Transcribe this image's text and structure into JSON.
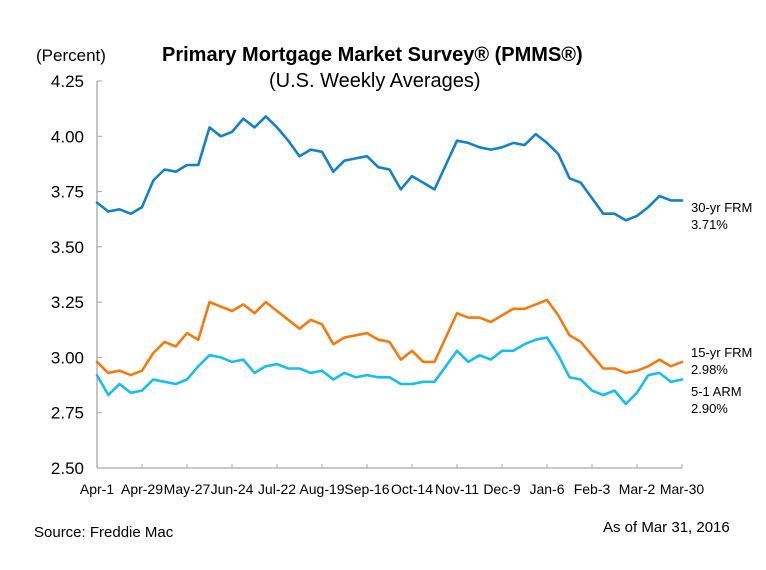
{
  "chart_data": {
    "type": "line",
    "title": "Primary Mortgage Market Survey® (PMMS®)",
    "subtitle": "(U.S. Weekly Averages)",
    "ylabel": "(Percent)",
    "xlabel": "",
    "ylim": [
      2.5,
      4.25
    ],
    "yticks": [
      "4.25",
      "4.00",
      "3.75",
      "3.50",
      "3.25",
      "3.00",
      "2.75",
      "2.50"
    ],
    "ytick_values": [
      4.25,
      4.0,
      3.75,
      3.5,
      3.25,
      3.0,
      2.75,
      2.5
    ],
    "xtick_labels": [
      "Apr-1",
      "Apr-29",
      "May-27",
      "Jun-24",
      "Jul-22",
      "Aug-19",
      "Sep-16",
      "Oct-14",
      "Nov-11",
      "Dec-9",
      "Jan-6",
      "Feb-3",
      "Mar-2",
      "Mar-30"
    ],
    "xtick_every_n_weeks": 4,
    "n_points": 53,
    "grid": false,
    "legend": "end-of-line labels (right)",
    "series": [
      {
        "name": "30-yr FRM",
        "end_label": "30-yr FRM",
        "end_value_label": "3.71%",
        "color": "#1181C8",
        "values": [
          3.7,
          3.66,
          3.67,
          3.65,
          3.68,
          3.8,
          3.85,
          3.84,
          3.87,
          3.87,
          4.04,
          4.0,
          4.02,
          4.08,
          4.04,
          4.09,
          4.04,
          3.98,
          3.91,
          3.94,
          3.93,
          3.84,
          3.89,
          3.9,
          3.91,
          3.86,
          3.85,
          3.76,
          3.82,
          3.79,
          3.76,
          3.87,
          3.98,
          3.97,
          3.95,
          3.94,
          3.95,
          3.97,
          3.96,
          4.01,
          3.97,
          3.92,
          3.81,
          3.79,
          3.72,
          3.65,
          3.65,
          3.62,
          3.64,
          3.68,
          3.73,
          3.71,
          3.71
        ]
      },
      {
        "name": "15-yr FRM",
        "end_label": "15-yr FRM",
        "end_value_label": "2.98%",
        "color": "#F47A0E",
        "values": [
          2.98,
          2.93,
          2.94,
          2.92,
          2.94,
          3.02,
          3.07,
          3.05,
          3.11,
          3.08,
          3.25,
          3.23,
          3.21,
          3.24,
          3.2,
          3.25,
          3.21,
          3.17,
          3.13,
          3.17,
          3.15,
          3.06,
          3.09,
          3.1,
          3.11,
          3.08,
          3.07,
          2.99,
          3.03,
          2.98,
          2.98,
          3.09,
          3.2,
          3.18,
          3.18,
          3.16,
          3.19,
          3.22,
          3.22,
          3.24,
          3.26,
          3.19,
          3.1,
          3.07,
          3.01,
          2.95,
          2.95,
          2.93,
          2.94,
          2.96,
          2.99,
          2.96,
          2.98
        ]
      },
      {
        "name": "5-1 ARM",
        "end_label": "5-1 ARM",
        "end_value_label": "2.90%",
        "color": "#17BDEF",
        "values": [
          2.92,
          2.83,
          2.88,
          2.84,
          2.85,
          2.9,
          2.89,
          2.88,
          2.9,
          2.96,
          3.01,
          3.0,
          2.98,
          2.99,
          2.93,
          2.96,
          2.97,
          2.95,
          2.95,
          2.93,
          2.94,
          2.9,
          2.93,
          2.91,
          2.92,
          2.91,
          2.91,
          2.88,
          2.88,
          2.89,
          2.89,
          2.96,
          3.03,
          2.98,
          3.01,
          2.99,
          3.03,
          3.03,
          3.06,
          3.08,
          3.09,
          3.01,
          2.91,
          2.9,
          2.85,
          2.83,
          2.85,
          2.79,
          2.84,
          2.92,
          2.93,
          2.89,
          2.9
        ]
      }
    ],
    "axis_color": "#A6A6A6"
  },
  "footer": {
    "source": "Source: Freddie Mac",
    "as_of": "As of Mar 31, 2016"
  }
}
